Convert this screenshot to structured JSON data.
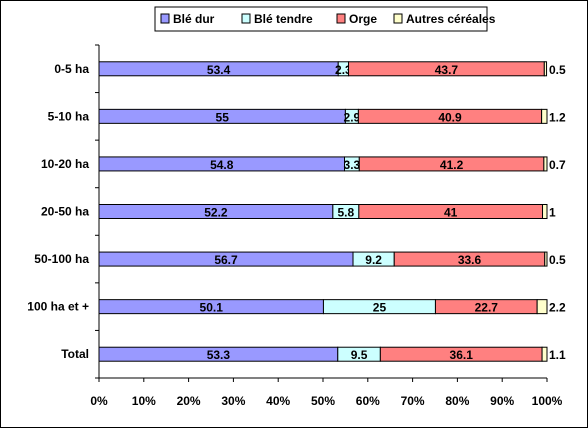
{
  "chart_data": {
    "type": "bar",
    "orientation": "horizontal",
    "stacked": "percent",
    "categories": [
      "0-5 ha",
      "5-10 ha",
      "10-20 ha",
      "20-50 ha",
      "50-100 ha",
      "100 ha et +",
      "Total"
    ],
    "series": [
      {
        "name": "Blé dur",
        "color": "#9999FF",
        "values": [
          53.4,
          55,
          54.8,
          52.2,
          56.7,
          50.1,
          53.3
        ]
      },
      {
        "name": "Blé tendre",
        "color": "#CCFFFF",
        "values": [
          2.3,
          2.9,
          3.3,
          5.8,
          9.2,
          25,
          9.5
        ]
      },
      {
        "name": "Orge",
        "color": "#FF8080",
        "values": [
          43.7,
          40.9,
          41.2,
          41,
          33.6,
          22.7,
          36.1
        ]
      },
      {
        "name": "Autres céréales",
        "color": "#FFFFCC",
        "values": [
          0.5,
          1.2,
          0.7,
          1,
          0.5,
          2.2,
          1.1
        ]
      }
    ],
    "x_ticks": [
      "0%",
      "10%",
      "20%",
      "30%",
      "40%",
      "50%",
      "60%",
      "70%",
      "80%",
      "90%",
      "100%"
    ],
    "xlim": [
      0,
      100
    ],
    "grid": false,
    "legend": "top",
    "title": "",
    "xlabel": "",
    "ylabel": ""
  }
}
